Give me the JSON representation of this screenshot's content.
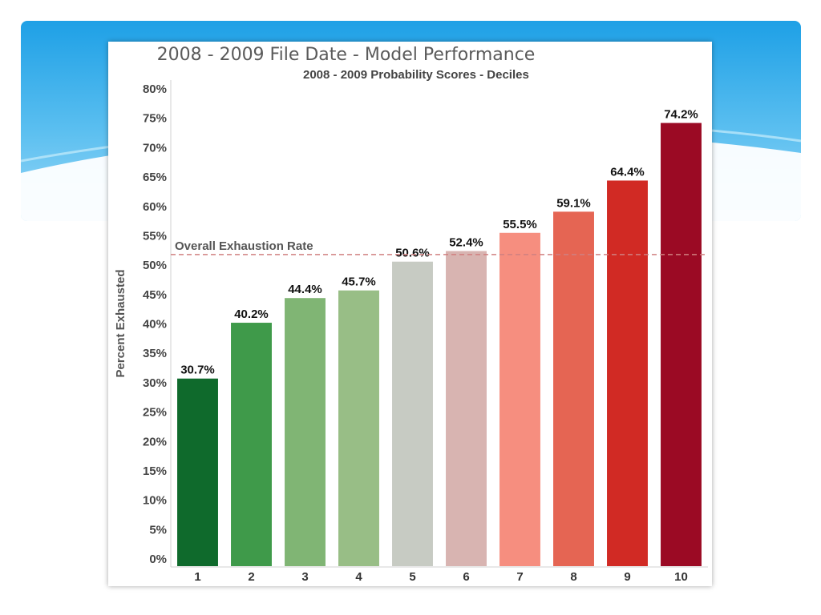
{
  "chart_data": {
    "type": "bar",
    "title": "2008 - 2009 File Date - Model Performance",
    "subtitle": "2008 - 2009 Probability Scores - Deciles",
    "xlabel": "",
    "ylabel": "Percent Exhausted",
    "categories": [
      "1",
      "2",
      "3",
      "4",
      "5",
      "6",
      "7",
      "8",
      "9",
      "10"
    ],
    "values": [
      30.7,
      40.2,
      44.4,
      45.7,
      50.6,
      52.4,
      55.5,
      59.1,
      64.4,
      74.2
    ],
    "data_labels": [
      "30.7%",
      "40.2%",
      "44.4%",
      "45.7%",
      "50.6%",
      "52.4%",
      "55.5%",
      "59.1%",
      "64.4%",
      "74.2%"
    ],
    "bar_colors": [
      "#0f6a2c",
      "#3f9a4a",
      "#80b574",
      "#98be86",
      "#c7cbc3",
      "#d8b4b1",
      "#f68e7f",
      "#e56553",
      "#d12a24",
      "#9b0a24"
    ],
    "ylim": [
      0,
      80
    ],
    "yticks": [
      0,
      5,
      10,
      15,
      20,
      25,
      30,
      35,
      40,
      45,
      50,
      55,
      60,
      65,
      70,
      75,
      80
    ],
    "ytick_labels": [
      "0%",
      "5%",
      "10%",
      "15%",
      "20%",
      "25%",
      "30%",
      "35%",
      "40%",
      "45%",
      "50%",
      "55%",
      "60%",
      "65%",
      "70%",
      "75%",
      "80%"
    ],
    "reference_line": {
      "label": "Overall Exhaustion Rate",
      "value": 51.8,
      "color": "#d08080"
    },
    "grid": false,
    "legend": "none"
  }
}
